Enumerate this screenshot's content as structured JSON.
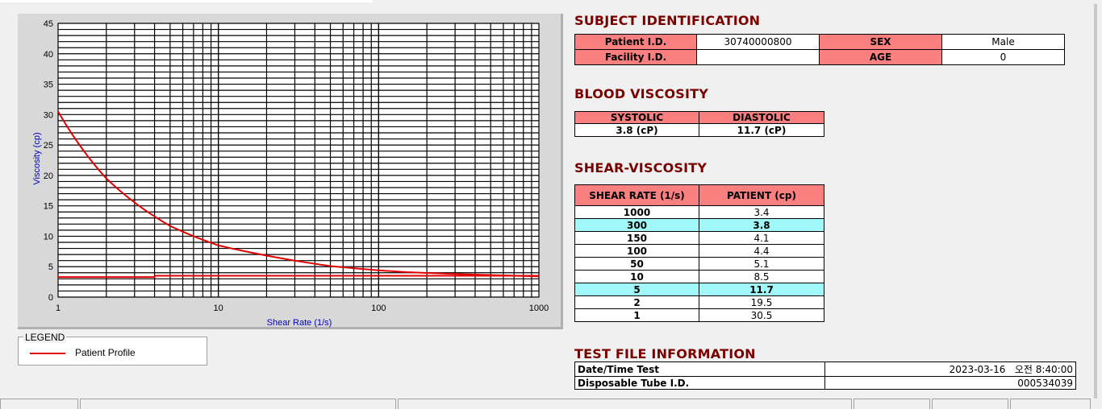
{
  "chart_data": {
    "type": "line",
    "xlabel": "Shear Rate (1/s)",
    "ylabel": "Viscosity (cp)",
    "x_scale": "log",
    "xlim": [
      1,
      1000
    ],
    "ylim": [
      0,
      45
    ],
    "x_ticks": [
      "1",
      "10",
      "100",
      "1000"
    ],
    "y_ticks": [
      "0",
      "5",
      "10",
      "15",
      "20",
      "25",
      "30",
      "35",
      "40",
      "45"
    ],
    "grid": true,
    "series": [
      {
        "name": "Patient Profile",
        "color": "#e00000",
        "x": [
          1,
          2,
          5,
          10,
          50,
          100,
          150,
          300,
          1000
        ],
        "y": [
          30.5,
          19.5,
          11.7,
          8.5,
          5.1,
          4.4,
          4.1,
          3.8,
          3.4
        ]
      },
      {
        "color": "#e00000",
        "x": [
          1,
          4,
          4,
          1000
        ],
        "y": [
          3.3,
          3.3,
          3.5,
          3.5
        ]
      }
    ]
  },
  "legend": {
    "title": "LEGEND",
    "label": "Patient Profile"
  },
  "subject": {
    "heading": "SUBJECT IDENTIFICATION",
    "patient_id_label": "Patient I.D.",
    "patient_id": "30740000800",
    "sex_label": "SEX",
    "sex": "Male",
    "facility_id_label": "Facility I.D.",
    "facility_id": "",
    "age_label": "AGE",
    "age": "0"
  },
  "blood_viscosity": {
    "heading": "BLOOD VISCOSITY",
    "systolic_label": "SYSTOLIC",
    "diastolic_label": "DIASTOLIC",
    "systolic": "3.8 (cP)",
    "diastolic": "11.7 (cP)"
  },
  "shear": {
    "heading": "SHEAR-VISCOSITY",
    "col1": "SHEAR RATE (1/s)",
    "col2": "PATIENT (cp)",
    "rows": [
      {
        "rate": "1000",
        "value": "3.4"
      },
      {
        "rate": "300",
        "value": "3.8",
        "highlight": true
      },
      {
        "rate": "150",
        "value": "4.1"
      },
      {
        "rate": "100",
        "value": "4.4"
      },
      {
        "rate": "50",
        "value": "5.1"
      },
      {
        "rate": "10",
        "value": "8.5"
      },
      {
        "rate": "5",
        "value": "11.7",
        "highlight": true
      },
      {
        "rate": "2",
        "value": "19.5"
      },
      {
        "rate": "1",
        "value": "30.5"
      }
    ]
  },
  "test_file": {
    "heading": "TEST FILE INFORMATION",
    "date_label": "Date/Time Test",
    "date": "2023-03-16   오전 8:40:00",
    "tube_label": "Disposable Tube I.D.",
    "tube": "000534039"
  },
  "colors": {
    "header_pink": "#fa8080",
    "highlight_cyan": "#a0f8f8",
    "heading_red": "#7a0000",
    "curve": "#e00000",
    "axis_label": "#0000c0"
  }
}
